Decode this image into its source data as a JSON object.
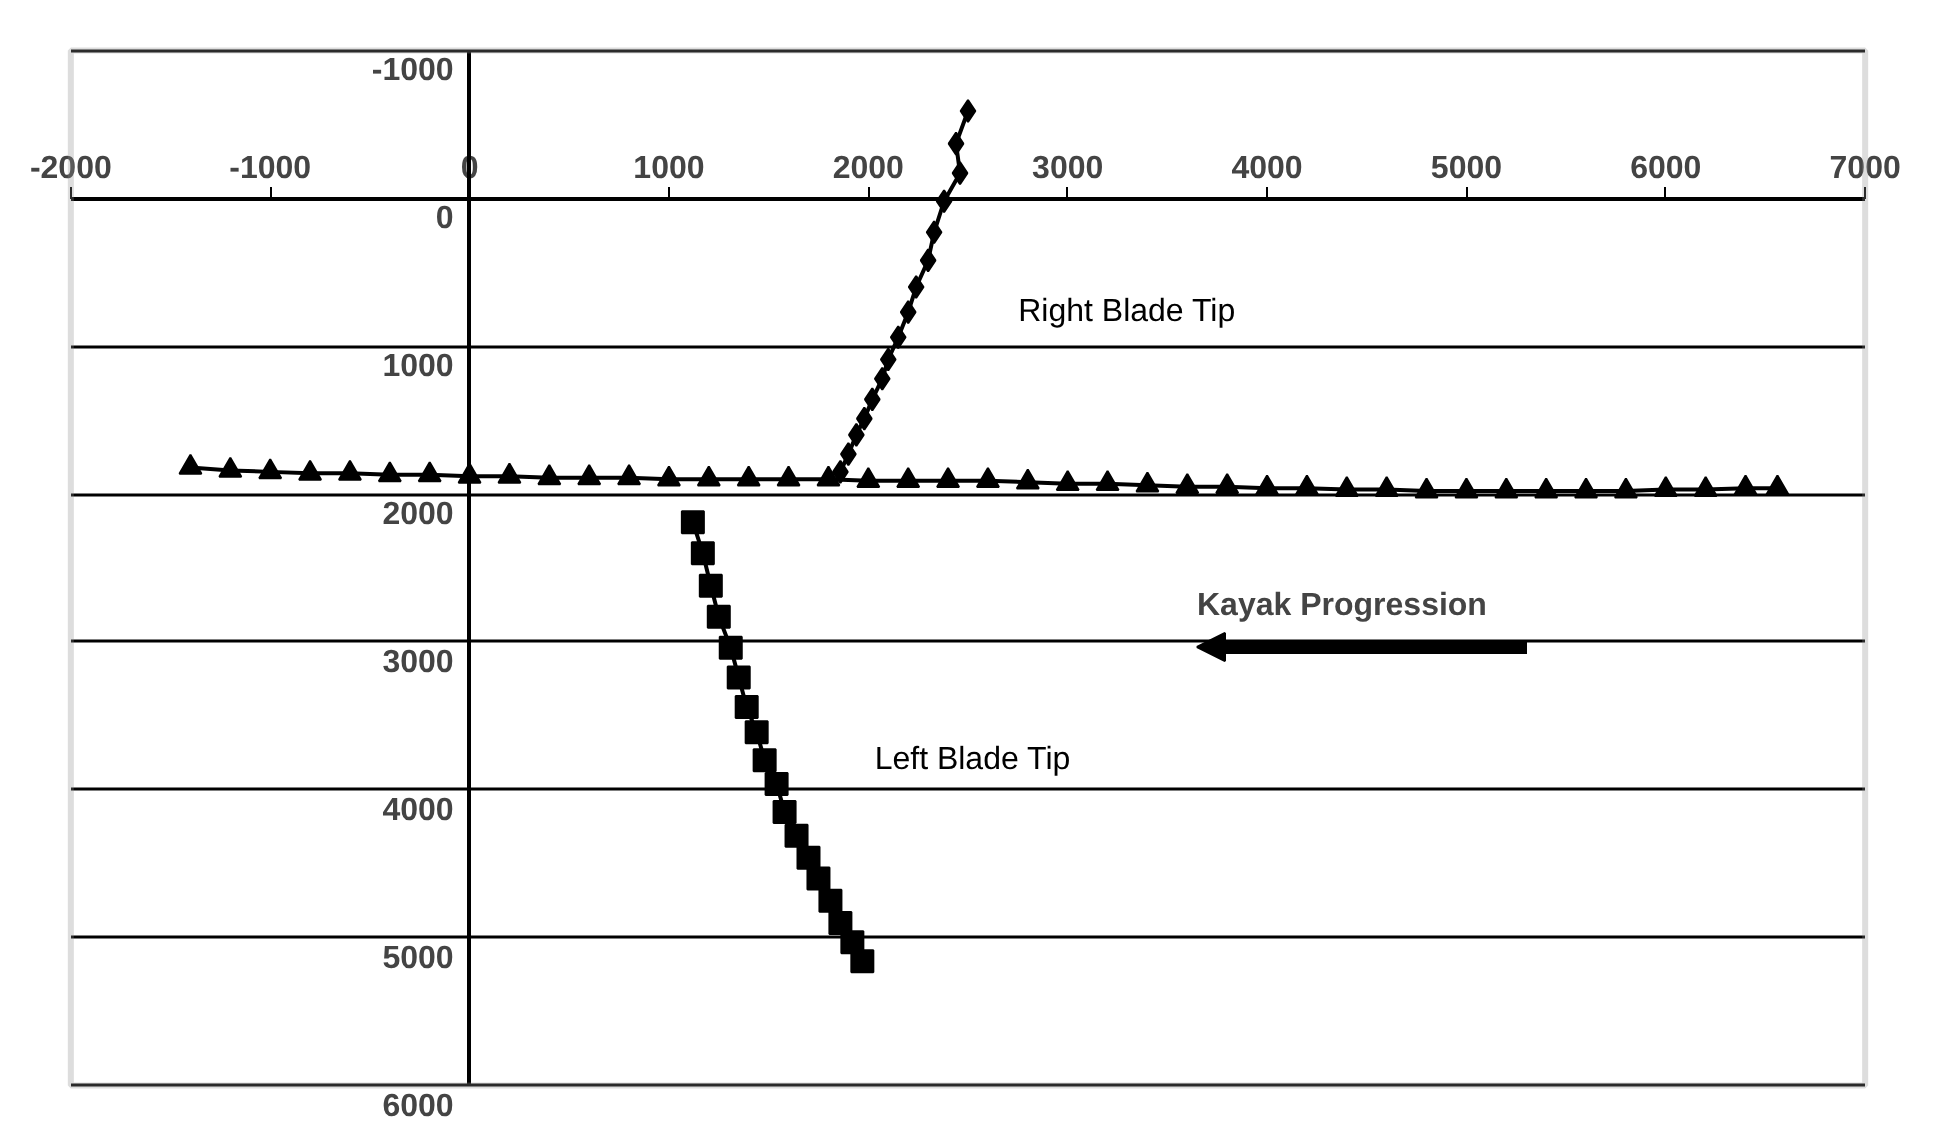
{
  "chart_data": {
    "type": "line",
    "xlim": [
      -2000,
      7000
    ],
    "ylim": [
      6000,
      -1000
    ],
    "xticks": [
      -2000,
      -1000,
      0,
      1000,
      2000,
      3000,
      4000,
      5000,
      6000,
      7000
    ],
    "yticks": [
      -1000,
      0,
      1000,
      2000,
      3000,
      4000,
      5000,
      6000
    ],
    "grid": "y",
    "line_style": "solid",
    "annotations": [
      "Kayak Progression"
    ],
    "series": [
      {
        "name": "Right Blade Tip",
        "color": "#000000",
        "marker": "diamond",
        "x": [
          2500,
          2440,
          2460,
          2380,
          2330,
          2300,
          2240,
          2200,
          2150,
          2100,
          2070,
          2020,
          1980,
          1940,
          1900,
          1860
        ],
        "values": [
          -590,
          -370,
          -170,
          20,
          230,
          420,
          600,
          770,
          940,
          1090,
          1220,
          1360,
          1490,
          1600,
          1730,
          1850
        ]
      },
      {
        "color": "#000000",
        "marker": "triangle",
        "x": [
          -1400,
          -1200,
          -1000,
          -800,
          -600,
          -400,
          -200,
          0,
          200,
          400,
          600,
          800,
          1000,
          1200,
          1400,
          1600,
          1800,
          2000,
          2200,
          2400,
          2600,
          2800,
          3000,
          3200,
          3400,
          3600,
          3800,
          4000,
          4200,
          4400,
          4600,
          4800,
          5000,
          5200,
          5400,
          5600,
          5800,
          6000,
          6200,
          6400,
          6560
        ],
        "values": [
          1820,
          1840,
          1850,
          1860,
          1860,
          1870,
          1870,
          1880,
          1880,
          1890,
          1890,
          1890,
          1900,
          1900,
          1900,
          1900,
          1900,
          1910,
          1910,
          1910,
          1910,
          1920,
          1930,
          1930,
          1940,
          1950,
          1950,
          1960,
          1960,
          1970,
          1970,
          1980,
          1980,
          1980,
          1980,
          1980,
          1980,
          1970,
          1970,
          1960,
          1960
        ]
      },
      {
        "name": "Left Blade Tip",
        "color": "#000000",
        "marker": "square",
        "x": [
          1120,
          1170,
          1210,
          1250,
          1310,
          1350,
          1390,
          1440,
          1480,
          1540,
          1580,
          1640,
          1700,
          1750,
          1810,
          1860,
          1920,
          1970
        ],
        "values": [
          2190,
          2400,
          2620,
          2830,
          3040,
          3240,
          3440,
          3610,
          3800,
          3960,
          4150,
          4310,
          4460,
          4600,
          4750,
          4900,
          5030,
          5160
        ]
      }
    ]
  }
}
